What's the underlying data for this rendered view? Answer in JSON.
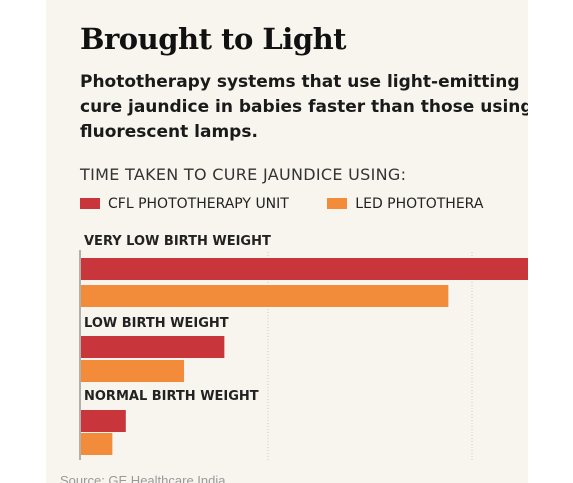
{
  "title": "Brought to Light",
  "subtitle_lines": [
    "Phototherapy systems that use light-emitting",
    "cure jaundice in babies faster than those using",
    "fluorescent lamps."
  ],
  "chart_heading": "TIME TAKEN TO CURE JAUNDICE USING:",
  "source": "Source: GE Healthcare India",
  "chart_data": {
    "type": "bar",
    "orientation": "horizontal",
    "categories": [
      "VERY LOW BIRTH WEIGHT",
      "LOW BIRTH WEIGHT",
      "NORMAL BIRTH WEIGHT"
    ],
    "series": [
      {
        "name": "CFL PHOTOTHERAPY UNIT",
        "color": "#c8353a",
        "values": [
          100,
          32,
          10
        ]
      },
      {
        "name": "LED PHOTOTHERA",
        "color": "#f28c3b",
        "values": [
          82,
          23,
          7
        ]
      }
    ],
    "xlim": [
      0,
      100
    ],
    "grid": true,
    "legend": "top"
  }
}
